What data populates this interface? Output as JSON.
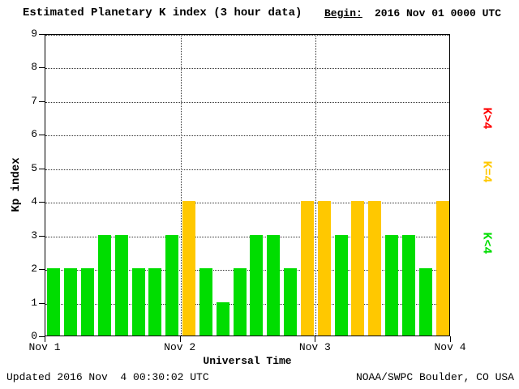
{
  "header": {
    "title": "Estimated Planetary K index (3 hour data)",
    "begin_label": "Begin:",
    "begin_value": "2016 Nov 01 0000 UTC"
  },
  "footer": {
    "updated": "Updated 2016 Nov  4 00:30:02 UTC",
    "source": "NOAA/SWPC Boulder, CO USA"
  },
  "chart_data": {
    "type": "bar",
    "title": "Estimated Planetary K index (3 hour data)",
    "xlabel": "Universal Time",
    "ylabel": "Kp index",
    "ylim": [
      0,
      9
    ],
    "yticks": [
      0,
      1,
      2,
      3,
      4,
      5,
      6,
      7,
      8,
      9
    ],
    "xticklabels": [
      "Nov 1",
      "Nov 2",
      "Nov 3",
      "Nov 4"
    ],
    "grid": "dotted",
    "bar_interval_hours": 3,
    "days": [
      "2016-11-01",
      "2016-11-02",
      "2016-11-03"
    ],
    "values": [
      2,
      2,
      2,
      3,
      3,
      2,
      2,
      3,
      4,
      2,
      1,
      2,
      3,
      3,
      2,
      4,
      4,
      3,
      4,
      4,
      3,
      3,
      2,
      4
    ],
    "colors_rule": {
      "lt4": "#00dd00",
      "eq4": "#ffc800",
      "gt4": "#ff0000"
    },
    "legend": [
      {
        "label": "K>4",
        "color": "#ff0000"
      },
      {
        "label": "K=4",
        "color": "#ffc800"
      },
      {
        "label": "K<4",
        "color": "#00dd00"
      }
    ]
  }
}
